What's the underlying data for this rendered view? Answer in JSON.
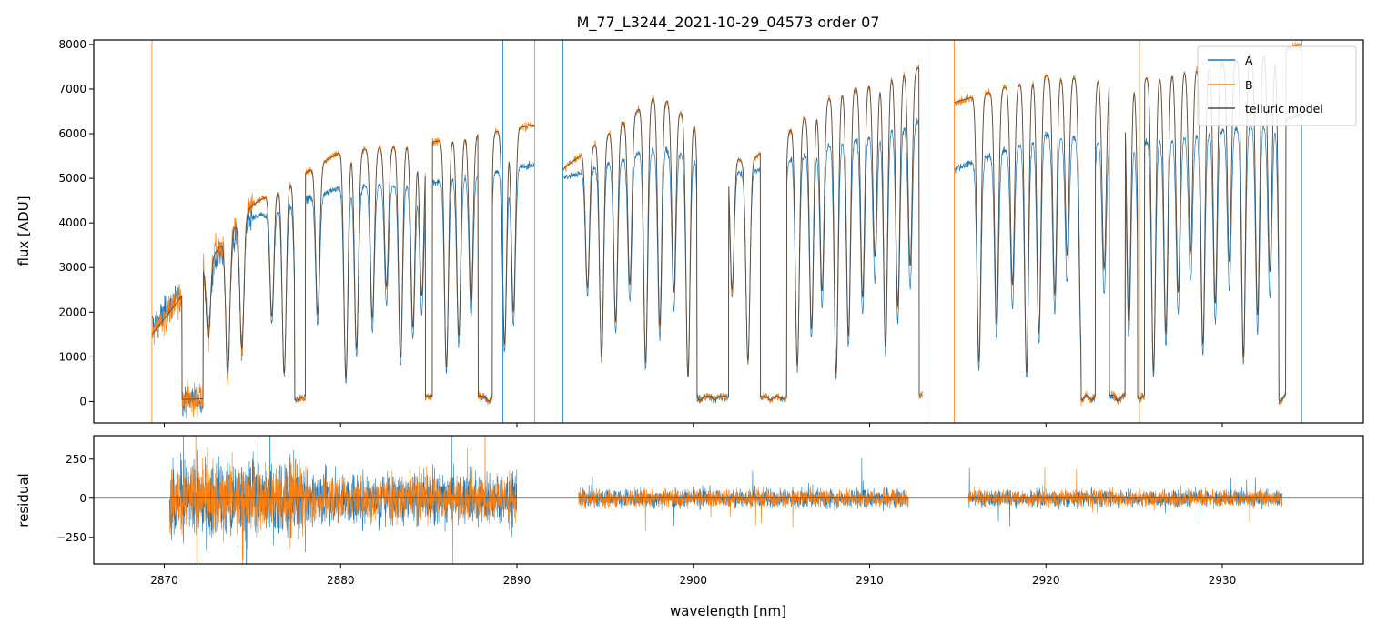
{
  "chart_data": [
    {
      "type": "line",
      "panel": "top",
      "title": "M_77_L3244_2021-10-29_04573  order 07",
      "xlabel": "",
      "ylabel": "flux [ADU]",
      "xlim": [
        2866,
        2938
      ],
      "ylim": [
        -480,
        8100
      ],
      "xticks": [
        2870,
        2880,
        2890,
        2900,
        2910,
        2920,
        2930
      ],
      "yticks": [
        0,
        1000,
        2000,
        3000,
        4000,
        5000,
        6000,
        7000,
        8000
      ],
      "yticklabels": [
        "0",
        "1000",
        "2000",
        "3000",
        "4000",
        "5000",
        "6000",
        "7000",
        "8000"
      ],
      "legend": {
        "position": "top-right",
        "entries": [
          "A",
          "B",
          "telluric model"
        ]
      },
      "continuum": [
        {
          "segment": 1,
          "x": [
            2869.3,
            2875,
            2880,
            2885,
            2891
          ],
          "A": [
            1700,
            4100,
            4800,
            4900,
            5300
          ],
          "B": [
            1500,
            4400,
            5600,
            5800,
            6200
          ]
        },
        {
          "segment": 2,
          "x": [
            2892.6,
            2898,
            2903,
            2908,
            2913
          ],
          "A": [
            5000,
            5700,
            5100,
            5800,
            6300
          ],
          "B": [
            5200,
            6900,
            5300,
            6900,
            7500
          ]
        },
        {
          "segment": 3,
          "x": [
            2914.8,
            2920,
            2925,
            2930,
            2934.5
          ],
          "A": [
            5200,
            6000,
            5800,
            6100,
            6400
          ],
          "B": [
            6700,
            7300,
            7200,
            7600,
            8000
          ]
        }
      ],
      "absorption_lines": [
        2872.5,
        2873.6,
        2874.4,
        2876.1,
        2876.8,
        2877.5,
        2878.7,
        2880.3,
        2880.9,
        2881.8,
        2882.6,
        2883.4,
        2884.1,
        2884.6,
        2886.0,
        2886.7,
        2887.4,
        2888.4,
        2889.3,
        2889.8,
        2894.0,
        2894.8,
        2895.6,
        2896.4,
        2897.3,
        2898.1,
        2898.9,
        2899.7,
        2900.4,
        2901.2,
        2902.2,
        2903.1,
        2904.4,
        2905.1,
        2905.9,
        2906.7,
        2907.3,
        2908.1,
        2908.8,
        2909.6,
        2910.3,
        2910.9,
        2911.6,
        2912.3,
        2916.2,
        2917.2,
        2918.1,
        2918.9,
        2919.6,
        2920.5,
        2921.2,
        2922.0,
        2922.6,
        2923.3,
        2924.1,
        2924.7,
        2925.3,
        2926.1,
        2926.8,
        2927.5,
        2928.2,
        2928.9,
        2929.6,
        2930.4,
        2931.2,
        2932.0,
        2932.7,
        2933.3
      ],
      "saturated_bands": [
        [
          2871.0,
          2872.2
        ],
        [
          2877.4,
          2878.0
        ],
        [
          2884.8,
          2885.2
        ],
        [
          2887.8,
          2888.6
        ],
        [
          2900.2,
          2902.0
        ],
        [
          2903.8,
          2905.3
        ],
        [
          2912.8,
          2913.2
        ],
        [
          2922.0,
          2922.8
        ],
        [
          2923.6,
          2924.5
        ],
        [
          2925.2,
          2925.6
        ],
        [
          2933.2,
          2933.6
        ]
      ]
    },
    {
      "type": "line",
      "panel": "bottom",
      "title": "",
      "xlabel": "wavelength [nm]",
      "ylabel": "residual",
      "xlim": [
        2866,
        2938
      ],
      "ylim": [
        -420,
        400
      ],
      "xticks": [
        2870,
        2880,
        2890,
        2900,
        2910,
        2920,
        2930
      ],
      "xticklabels": [
        "2870",
        "2880",
        "2890",
        "2900",
        "2910",
        "2920",
        "2930"
      ],
      "yticks": [
        -250,
        0,
        250
      ],
      "yticklabels": [
        "−250",
        "0",
        "250"
      ],
      "segments": [
        {
          "x": [
            2870.3,
            2890.0
          ],
          "A_amplitude": 260,
          "B_amplitude": 230
        },
        {
          "x": [
            2893.5,
            2912.2
          ],
          "A_amplitude": 95,
          "B_amplitude": 90
        },
        {
          "x": [
            2915.6,
            2933.4
          ],
          "A_amplitude": 85,
          "B_amplitude": 85
        }
      ],
      "series": [
        {
          "name": "A",
          "color": "#1f77b4"
        },
        {
          "name": "B",
          "color": "#ff7f0e"
        },
        {
          "name": "telluric model",
          "color": "#4a4a4a"
        }
      ]
    }
  ]
}
